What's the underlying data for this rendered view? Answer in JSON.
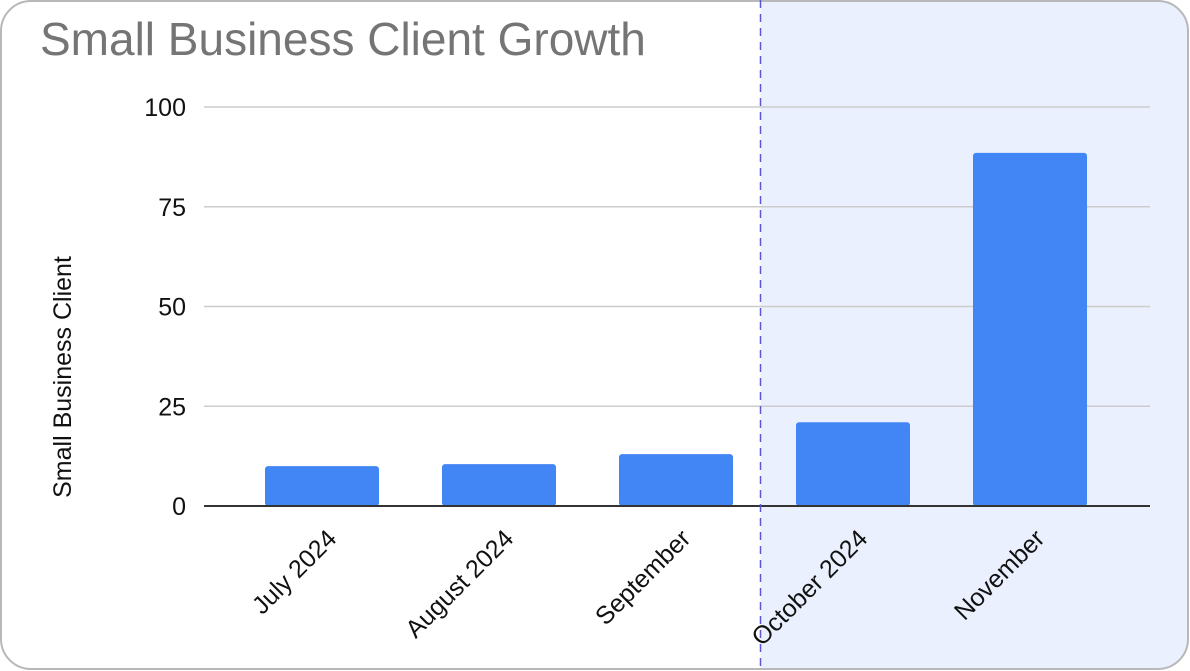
{
  "colors": {
    "bar": "#4285F4",
    "highlight_region": "#EAF0FD",
    "divider_line": "#5B57D1",
    "grid": "#CCCCCC",
    "axis": "#333333",
    "title": "#757575",
    "text": "#111111",
    "frame_border": "#B8B8B8"
  },
  "chart_data": {
    "type": "bar",
    "title": "Small Business Client Growth",
    "xlabel": "",
    "ylabel": "Small Business Client",
    "categories": [
      "July 2024",
      "August 2024",
      "September",
      "October 2024",
      "November"
    ],
    "values": [
      10,
      10.5,
      13,
      21,
      88.5
    ],
    "ylim": [
      0,
      100
    ],
    "yticks": [
      0,
      25,
      50,
      75,
      100
    ],
    "grid": true,
    "legend": "none",
    "highlight": {
      "from_category": "October 2024",
      "style": "shaded region with dashed divider"
    }
  }
}
